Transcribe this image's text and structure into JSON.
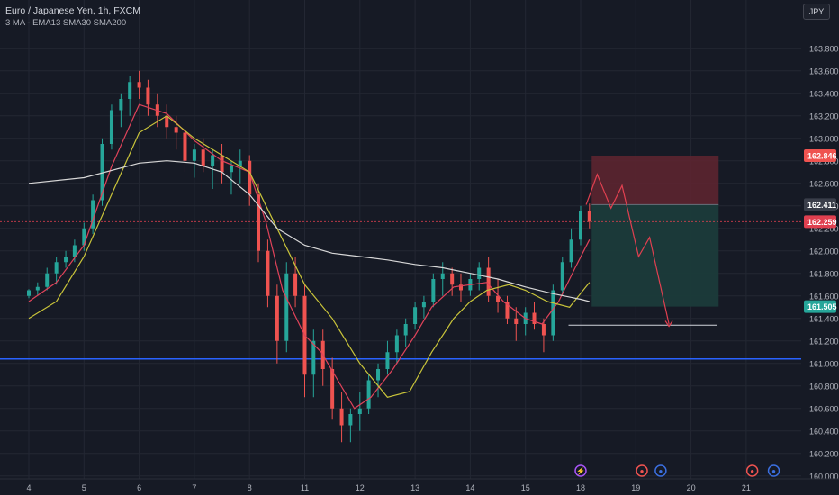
{
  "header": {
    "symbol_title": "Euro / Japanese Yen, 1h, FXCM",
    "indicators": "3 MA - EMA13 SMA30 SMA200",
    "currency_button": "JPY"
  },
  "colors": {
    "background": "#161a25",
    "grid": "#232733",
    "bull": "#26a69a",
    "bear": "#ef5350",
    "ema13": "#e0435a",
    "sma30": "#c9c43a",
    "sma200": "#d8d8d8",
    "support_line": "#2962ff",
    "price_line": "#e04050",
    "stop_zone": "#5c2530",
    "target_zone": "#1b3b3a"
  },
  "chart_data": {
    "type": "candlestick",
    "title": "Euro / Japanese Yen, 1h, FXCM",
    "x_ticks": [
      "4",
      "5",
      "6",
      "7",
      "8",
      "11",
      "12",
      "13",
      "14",
      "15",
      "18",
      "19",
      "20",
      "21"
    ],
    "y_ticks": [
      "163.800",
      "163.600",
      "163.400",
      "163.200",
      "163.000",
      "162.800",
      "162.600",
      "162.400",
      "162.200",
      "162.000",
      "161.800",
      "161.600",
      "161.400",
      "161.200",
      "161.000",
      "160.800",
      "160.600",
      "160.400",
      "160.200",
      "160.000"
    ],
    "ylim": [
      159.99,
      163.99
    ],
    "x_range": [
      0,
      14.4
    ],
    "price_labels": [
      {
        "value": 162.846,
        "text": "162.846",
        "color": "#ef5350"
      },
      {
        "value": 162.411,
        "text": "162.411",
        "color": "#3a3e4a"
      },
      {
        "value": 162.259,
        "text": "162.259",
        "color": "#e04050"
      },
      {
        "value": 161.505,
        "text": "161.505",
        "color": "#26a69a"
      }
    ],
    "short_position": {
      "x_start": 10.2,
      "x_end": 12.5,
      "entry": 162.411,
      "stop": 162.846,
      "target": 161.505
    },
    "support_level": 161.04,
    "current_price": 162.259,
    "horizontal_ray": {
      "x_start": 9.78,
      "x_end": 12.48,
      "y": 161.34
    },
    "projection_path": [
      [
        10.1,
        162.41
      ],
      [
        10.3,
        162.68
      ],
      [
        10.55,
        162.38
      ],
      [
        10.75,
        162.58
      ],
      [
        11.05,
        161.95
      ],
      [
        11.25,
        162.12
      ],
      [
        11.6,
        161.35
      ]
    ],
    "projection_arrow_end": [
      11.6,
      161.33
    ],
    "events": [
      {
        "x": 10.0,
        "symbol": "⚡",
        "stroke": "#a855f7"
      },
      {
        "x": 11.11,
        "symbol": "●",
        "stroke": "#ef5350"
      },
      {
        "x": 11.45,
        "symbol": "●",
        "stroke": "#3b6fe0"
      },
      {
        "x": 13.11,
        "symbol": "●",
        "stroke": "#ef5350"
      },
      {
        "x": 13.5,
        "symbol": "●",
        "stroke": "#3b6fe0"
      }
    ],
    "candles": [
      [
        0,
        161.6,
        161.66,
        161.58,
        161.65
      ],
      [
        0.16,
        161.65,
        161.72,
        161.6,
        161.68
      ],
      [
        0.33,
        161.68,
        161.85,
        161.65,
        161.8
      ],
      [
        0.5,
        161.8,
        161.95,
        161.7,
        161.9
      ],
      [
        0.67,
        161.9,
        162.0,
        161.85,
        161.95
      ],
      [
        0.83,
        161.95,
        162.1,
        161.9,
        162.05
      ],
      [
        1.0,
        162.05,
        162.25,
        162.0,
        162.2
      ],
      [
        1.16,
        162.2,
        162.5,
        162.15,
        162.45
      ],
      [
        1.33,
        162.45,
        163.0,
        162.4,
        162.95
      ],
      [
        1.5,
        162.95,
        163.3,
        162.9,
        163.25
      ],
      [
        1.67,
        163.25,
        163.4,
        163.1,
        163.35
      ],
      [
        1.83,
        163.35,
        163.55,
        163.2,
        163.5
      ],
      [
        2.0,
        163.5,
        163.6,
        163.35,
        163.45
      ],
      [
        2.16,
        163.45,
        163.52,
        163.2,
        163.3
      ],
      [
        2.33,
        163.3,
        163.4,
        163.1,
        163.2
      ],
      [
        2.5,
        163.2,
        163.3,
        163.0,
        163.1
      ],
      [
        2.67,
        163.1,
        163.2,
        162.9,
        163.05
      ],
      [
        2.83,
        163.05,
        163.1,
        162.7,
        162.8
      ],
      [
        3.0,
        162.8,
        162.95,
        162.65,
        162.9
      ],
      [
        3.16,
        162.9,
        163.0,
        162.7,
        162.75
      ],
      [
        3.33,
        162.75,
        162.9,
        162.55,
        162.85
      ],
      [
        3.5,
        162.85,
        162.95,
        162.6,
        162.7
      ],
      [
        3.67,
        162.7,
        162.8,
        162.5,
        162.75
      ],
      [
        3.83,
        162.75,
        162.9,
        162.6,
        162.8
      ],
      [
        4.0,
        162.8,
        162.85,
        162.4,
        162.5
      ],
      [
        4.16,
        162.5,
        162.6,
        161.9,
        162.0
      ],
      [
        4.33,
        162.0,
        162.1,
        161.5,
        161.6
      ],
      [
        4.5,
        161.6,
        161.7,
        161.0,
        161.2
      ],
      [
        4.67,
        161.2,
        161.9,
        161.1,
        161.8
      ],
      [
        4.83,
        161.8,
        161.95,
        161.5,
        161.6
      ],
      [
        5.0,
        161.6,
        161.7,
        160.7,
        160.9
      ],
      [
        5.16,
        160.9,
        161.3,
        160.7,
        161.2
      ],
      [
        5.33,
        161.2,
        161.3,
        160.8,
        160.95
      ],
      [
        5.5,
        160.95,
        161.05,
        160.5,
        160.6
      ],
      [
        5.67,
        160.6,
        160.75,
        160.3,
        160.45
      ],
      [
        5.83,
        160.45,
        160.6,
        160.3,
        160.55
      ],
      [
        6.0,
        160.55,
        160.75,
        160.4,
        160.6
      ],
      [
        6.16,
        160.6,
        160.9,
        160.55,
        160.85
      ],
      [
        6.33,
        160.85,
        161.0,
        160.7,
        160.95
      ],
      [
        6.5,
        160.95,
        161.2,
        160.9,
        161.1
      ],
      [
        6.67,
        161.1,
        161.3,
        161.0,
        161.25
      ],
      [
        6.83,
        161.25,
        161.4,
        161.15,
        161.35
      ],
      [
        7.0,
        161.35,
        161.55,
        161.3,
        161.5
      ],
      [
        7.16,
        161.5,
        161.6,
        161.4,
        161.55
      ],
      [
        7.33,
        161.55,
        161.8,
        161.5,
        161.75
      ],
      [
        7.5,
        161.75,
        161.9,
        161.6,
        161.8
      ],
      [
        7.67,
        161.8,
        161.85,
        161.6,
        161.7
      ],
      [
        7.83,
        161.7,
        161.8,
        161.55,
        161.65
      ],
      [
        8.0,
        161.65,
        161.8,
        161.6,
        161.75
      ],
      [
        8.16,
        161.75,
        161.9,
        161.65,
        161.85
      ],
      [
        8.33,
        161.85,
        161.95,
        161.55,
        161.6
      ],
      [
        8.5,
        161.6,
        161.75,
        161.45,
        161.55
      ],
      [
        8.67,
        161.55,
        161.6,
        161.35,
        161.4
      ],
      [
        8.83,
        161.4,
        161.5,
        161.2,
        161.35
      ],
      [
        9.0,
        161.35,
        161.5,
        161.25,
        161.45
      ],
      [
        9.16,
        161.45,
        161.55,
        161.3,
        161.35
      ],
      [
        9.33,
        161.35,
        161.4,
        161.1,
        161.25
      ],
      [
        9.5,
        161.25,
        161.7,
        161.2,
        161.65
      ],
      [
        9.67,
        161.65,
        161.95,
        161.6,
        161.9
      ],
      [
        9.83,
        161.9,
        162.2,
        161.85,
        162.1
      ],
      [
        10.0,
        162.1,
        162.4,
        162.05,
        162.35
      ],
      [
        10.16,
        162.35,
        162.42,
        162.2,
        162.26
      ]
    ],
    "series": [
      {
        "name": "EMA13",
        "color": "#e0435a",
        "points": [
          [
            0,
            161.55
          ],
          [
            0.5,
            161.72
          ],
          [
            1.0,
            162.05
          ],
          [
            1.5,
            162.75
          ],
          [
            2.0,
            163.3
          ],
          [
            2.5,
            163.22
          ],
          [
            3.0,
            162.98
          ],
          [
            3.5,
            162.8
          ],
          [
            4.0,
            162.7
          ],
          [
            4.3,
            162.25
          ],
          [
            4.6,
            161.65
          ],
          [
            5.0,
            161.25
          ],
          [
            5.3,
            161.1
          ],
          [
            5.6,
            160.85
          ],
          [
            5.9,
            160.6
          ],
          [
            6.2,
            160.7
          ],
          [
            6.6,
            160.95
          ],
          [
            7.0,
            161.25
          ],
          [
            7.3,
            161.5
          ],
          [
            7.7,
            161.68
          ],
          [
            8.0,
            161.7
          ],
          [
            8.3,
            161.72
          ],
          [
            8.6,
            161.55
          ],
          [
            9.0,
            161.4
          ],
          [
            9.3,
            161.35
          ],
          [
            9.6,
            161.55
          ],
          [
            9.9,
            161.85
          ],
          [
            10.16,
            162.1
          ]
        ]
      },
      {
        "name": "SMA30",
        "color": "#c9c43a",
        "points": [
          [
            0,
            161.4
          ],
          [
            0.5,
            161.55
          ],
          [
            1.0,
            161.95
          ],
          [
            1.5,
            162.5
          ],
          [
            2.0,
            163.05
          ],
          [
            2.5,
            163.2
          ],
          [
            3.0,
            163.0
          ],
          [
            3.5,
            162.85
          ],
          [
            4.0,
            162.7
          ],
          [
            4.5,
            162.2
          ],
          [
            5.0,
            161.7
          ],
          [
            5.5,
            161.4
          ],
          [
            6.0,
            161.0
          ],
          [
            6.5,
            160.7
          ],
          [
            6.9,
            160.75
          ],
          [
            7.3,
            161.1
          ],
          [
            7.7,
            161.4
          ],
          [
            8.0,
            161.55
          ],
          [
            8.3,
            161.65
          ],
          [
            8.7,
            161.7
          ],
          [
            9.0,
            161.65
          ],
          [
            9.4,
            161.55
          ],
          [
            9.8,
            161.5
          ],
          [
            10.16,
            161.72
          ]
        ]
      },
      {
        "name": "SMA200",
        "color": "#d8d8d8",
        "points": [
          [
            0,
            162.6
          ],
          [
            1.0,
            162.65
          ],
          [
            2.0,
            162.78
          ],
          [
            2.5,
            162.8
          ],
          [
            3.0,
            162.78
          ],
          [
            3.5,
            162.7
          ],
          [
            4.0,
            162.5
          ],
          [
            4.5,
            162.2
          ],
          [
            5.0,
            162.05
          ],
          [
            5.5,
            161.98
          ],
          [
            6.0,
            161.95
          ],
          [
            6.5,
            161.92
          ],
          [
            7.0,
            161.88
          ],
          [
            7.5,
            161.85
          ],
          [
            8.0,
            161.8
          ],
          [
            8.5,
            161.75
          ],
          [
            9.0,
            161.68
          ],
          [
            9.5,
            161.62
          ],
          [
            10.0,
            161.57
          ],
          [
            10.16,
            161.55
          ]
        ]
      }
    ]
  }
}
